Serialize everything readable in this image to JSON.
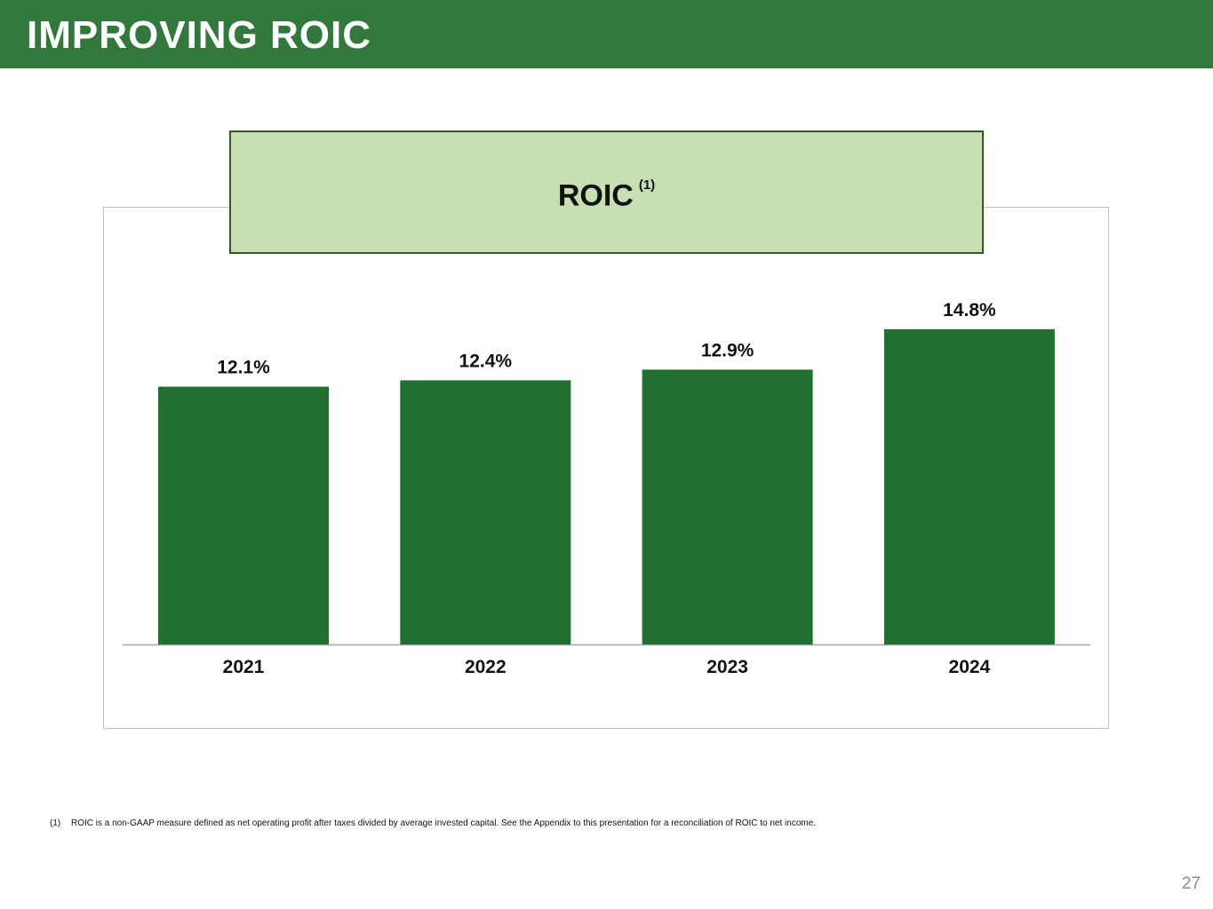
{
  "header": {
    "title": "IMPROVING ROIC"
  },
  "chart_title": {
    "text": "ROIC",
    "superscript": "(1)"
  },
  "chart_data": {
    "type": "bar",
    "title": "ROIC (1)",
    "categories": [
      "2021",
      "2022",
      "2023",
      "2024"
    ],
    "values": [
      12.1,
      12.4,
      12.9,
      14.8
    ],
    "value_labels": [
      "12.1%",
      "12.4%",
      "12.9%",
      "14.8%"
    ],
    "unit": "%",
    "ylim": [
      0,
      16
    ],
    "grid": false,
    "legend": "none",
    "bar_color": "#217032"
  },
  "footnote": {
    "marker": "(1)",
    "text": "ROIC is a non-GAAP measure defined as net operating profit after taxes divided by average invested capital. See the Appendix to this presentation for a reconciliation of ROIC to net income."
  },
  "page_number": "27",
  "colors": {
    "header_bg": "#31783c",
    "title_box_bg": "#c6e0b4",
    "title_box_border": "#375623",
    "bar": "#217032",
    "axis": "#a6a6a6"
  }
}
